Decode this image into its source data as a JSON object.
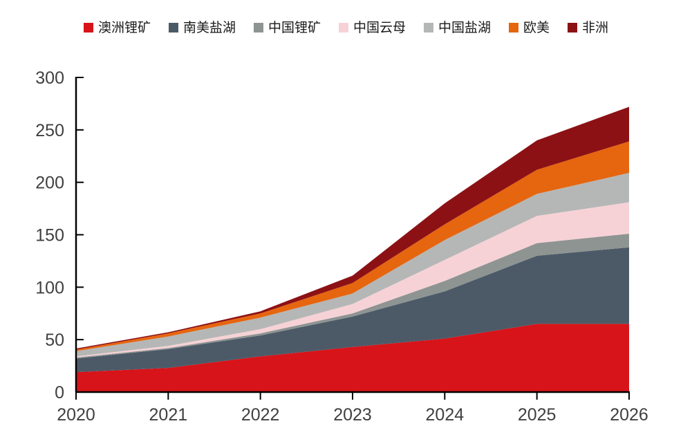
{
  "chart_data": {
    "type": "area",
    "stacked": true,
    "title": "",
    "xlabel": "",
    "ylabel": "",
    "x": [
      2020,
      2021,
      2022,
      2023,
      2024,
      2025,
      2026
    ],
    "x_tick_labels": [
      "2020",
      "2021",
      "2022",
      "2023",
      "2024",
      "2025",
      "2026"
    ],
    "y_ticks": [
      0,
      50,
      100,
      150,
      200,
      250,
      300
    ],
    "ylim": [
      0,
      300
    ],
    "grid": false,
    "legend_position": "top",
    "background_color": "#ffffff",
    "axis_color": "#000000",
    "axis_label_color": "#404040",
    "series": [
      {
        "name": "澳洲锂矿",
        "color": "#d7141a",
        "values": [
          19,
          23,
          34,
          43,
          51,
          65,
          65
        ]
      },
      {
        "name": "南美盐湖",
        "color": "#4c5a68",
        "values": [
          13,
          18,
          20,
          29,
          45,
          65,
          73
        ]
      },
      {
        "name": "中国锂矿",
        "color": "#8e9492",
        "values": [
          1,
          1,
          2,
          3,
          10,
          12,
          13
        ]
      },
      {
        "name": "中国云母",
        "color": "#f6d2d6",
        "values": [
          1,
          2,
          4,
          9,
          20,
          26,
          30
        ]
      },
      {
        "name": "中国盐湖",
        "color": "#b5b7b6",
        "values": [
          5,
          9,
          11,
          10,
          19,
          21,
          28
        ]
      },
      {
        "name": "欧美",
        "color": "#e6650f",
        "values": [
          1.5,
          3,
          4,
          10,
          15,
          23,
          30
        ]
      },
      {
        "name": "非洲",
        "color": "#8c1115",
        "values": [
          1,
          1,
          2,
          7,
          20,
          28,
          33
        ]
      }
    ],
    "stack_totals": [
      41.5,
      57,
      77,
      111,
      180,
      240,
      272
    ]
  }
}
